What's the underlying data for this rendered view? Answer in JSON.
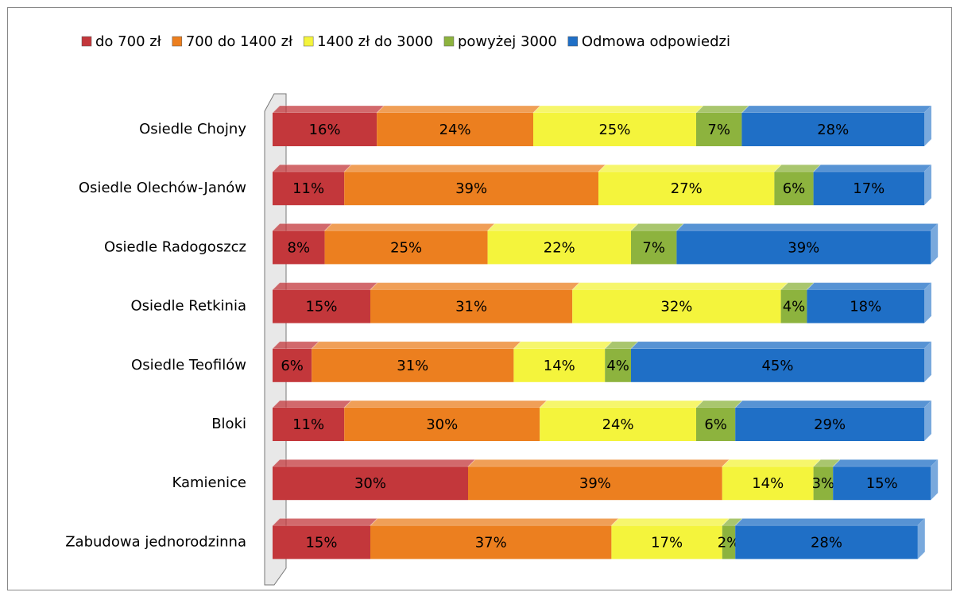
{
  "chart_data": {
    "type": "stacked-bar-horizontal",
    "categories": [
      "Osiedle Chojny",
      "Osiedle Olechów-Janów",
      "Osiedle Radogoszcz",
      "Osiedle Retkinia",
      "Osiedle Teofilów",
      "Bloki",
      "Kamienice",
      "Zabudowa jednorodzinna"
    ],
    "series": [
      {
        "name": "do 700 zł",
        "color": "#c3373b",
        "values": [
          16,
          11,
          8,
          15,
          6,
          11,
          30,
          15
        ],
        "value_labels": [
          "16%",
          "11%",
          "8%",
          "15%",
          "6%",
          "11%",
          "30%",
          "15%"
        ]
      },
      {
        "name": "700 do 1400 zł",
        "color": "#ec7f1f",
        "values": [
          24,
          39,
          25,
          31,
          31,
          30,
          39,
          37
        ],
        "value_labels": [
          "24%",
          "39%",
          "25%",
          "31%",
          "31%",
          "30%",
          "39%",
          "37%"
        ]
      },
      {
        "name": "1400 zł do 3000",
        "color": "#f4f43c",
        "values": [
          25,
          27,
          22,
          32,
          14,
          24,
          14,
          17
        ],
        "value_labels": [
          "25%",
          "27%",
          "22%",
          "32%",
          "14%",
          "24%",
          "14%",
          "17%"
        ]
      },
      {
        "name": "powyżej 3000",
        "color": "#8db33e",
        "values": [
          7,
          6,
          7,
          4,
          4,
          6,
          3,
          2
        ],
        "value_labels": [
          "7%",
          "6%",
          "7%",
          "4%",
          "4%",
          "6%",
          "3%",
          "2%"
        ]
      },
      {
        "name": "Odmowa odpowiedzi",
        "color": "#1f6fc6",
        "values": [
          28,
          17,
          39,
          18,
          45,
          29,
          15,
          28
        ],
        "value_labels": [
          "28%",
          "17%",
          "39%",
          "18%",
          "45%",
          "29%",
          "15%",
          "28%"
        ]
      }
    ],
    "xlim": [
      0,
      100
    ],
    "legend": "top"
  }
}
